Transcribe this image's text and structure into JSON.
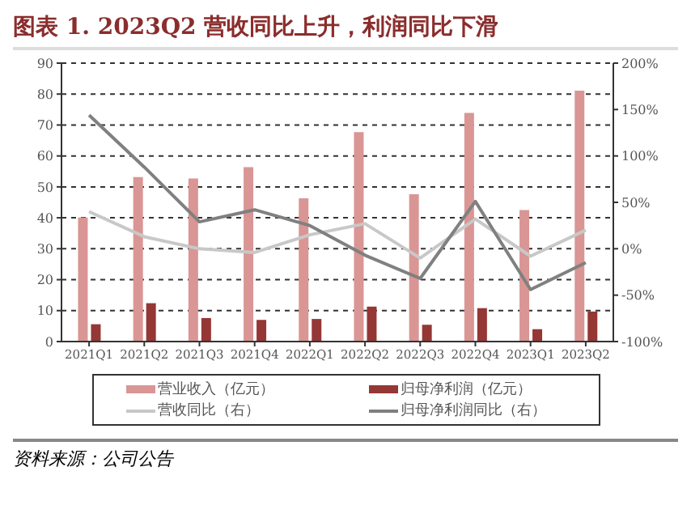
{
  "chart_data": {
    "type": "bar",
    "title": "图表 1. 2023Q2 营收同比上升，利润同比下滑",
    "categories": [
      "2021Q1",
      "2021Q2",
      "2021Q3",
      "2021Q4",
      "2022Q1",
      "2022Q2",
      "2022Q3",
      "2022Q4",
      "2023Q1",
      "2023Q2"
    ],
    "series": [
      {
        "name": "营业收入（亿元）",
        "color": "#d99694",
        "values": [
          40.1,
          53.2,
          52.7,
          56.4,
          46.3,
          67.7,
          47.6,
          73.9,
          42.5,
          81.1
        ]
      },
      {
        "name": "归母净利润（亿元）",
        "color": "#953735",
        "values": [
          5.6,
          12.4,
          7.6,
          7.0,
          7.3,
          11.3,
          5.4,
          10.8,
          4.0,
          9.7
        ]
      },
      {
        "name": "营收同比（右）",
        "type": "line",
        "axis": "y2",
        "color": "#c8c8c8",
        "values": [
          40,
          13,
          0,
          -4,
          15,
          27,
          -10,
          32,
          -8,
          20
        ]
      },
      {
        "name": "归母净利润同比（右）",
        "type": "line",
        "axis": "y2",
        "color": "#808080",
        "values": [
          144,
          88,
          29,
          42,
          25,
          -7,
          -32,
          51,
          -44,
          -15
        ]
      }
    ],
    "ylim": [
      0,
      90
    ],
    "yticks": [
      0,
      10,
      20,
      30,
      40,
      50,
      60,
      70,
      80,
      90
    ],
    "y2lim": [
      -100,
      200
    ],
    "y2ticks": [
      {
        "value": -100,
        "label": "-100%"
      },
      {
        "value": -50,
        "label": "-50%"
      },
      {
        "value": 0,
        "label": "0%"
      },
      {
        "value": 50,
        "label": "50%"
      },
      {
        "value": 100,
        "label": "100%"
      },
      {
        "value": 150,
        "label": "150%"
      },
      {
        "value": 200,
        "label": "200%"
      }
    ],
    "grid": "y",
    "legend": "bottom",
    "marker": "none",
    "line_style": "solid",
    "annotations": [
      "资料来源：公司公告"
    ]
  }
}
